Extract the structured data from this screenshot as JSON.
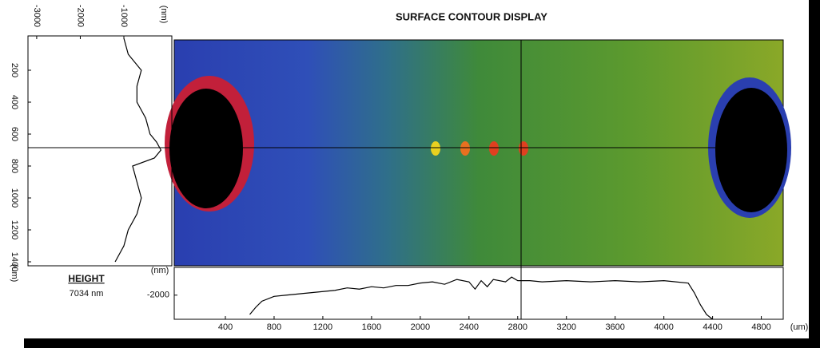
{
  "header": {
    "title": "SURFACE CONTOUR DISPLAY"
  },
  "readout": {
    "label": "HEIGHT",
    "value": "7034 nm"
  },
  "left_profile": {
    "xlim": [
      -3200,
      100
    ],
    "ylim": [
      -15,
      1425
    ],
    "xticks": [
      -3000,
      -2000,
      -1000
    ],
    "x_unit": "(nm)",
    "yticks": [
      200,
      400,
      600,
      800,
      1000,
      1200,
      1400
    ],
    "y_unit": "(um)",
    "x": [
      -1000,
      -900,
      -600,
      -700,
      -700,
      -500,
      -400,
      -250,
      -150,
      -300,
      -800,
      -700,
      -600,
      -700,
      -900,
      -1000,
      -1200
    ],
    "y": [
      0,
      100,
      200,
      300,
      400,
      500,
      600,
      650,
      700,
      750,
      800,
      900,
      1000,
      1100,
      1200,
      1300,
      1400
    ]
  },
  "bottom_profile": {
    "xlim": [
      -20,
      4980
    ],
    "ylim": [
      -4000,
      300
    ],
    "xticks": [
      400,
      800,
      1200,
      1600,
      2000,
      2400,
      2800,
      3200,
      3600,
      4000,
      4400,
      4800
    ],
    "x_unit": "(um)",
    "yticks": [
      -2000
    ],
    "y_unit": "(nm)",
    "x": [
      600,
      650,
      700,
      800,
      900,
      1000,
      1100,
      1200,
      1300,
      1400,
      1500,
      1600,
      1700,
      1800,
      1900,
      2000,
      2100,
      2200,
      2300,
      2400,
      2450,
      2500,
      2550,
      2600,
      2700,
      2750,
      2800,
      2900,
      3000,
      3200,
      3400,
      3600,
      3800,
      4000,
      4200,
      4250,
      4300,
      4350,
      4400
    ],
    "y": [
      -3600,
      -3000,
      -2500,
      -2100,
      -2000,
      -1900,
      -1800,
      -1700,
      -1600,
      -1400,
      -1500,
      -1300,
      -1400,
      -1200,
      -1200,
      -1000,
      -900,
      -1100,
      -700,
      -900,
      -1500,
      -800,
      -1300,
      -700,
      -900,
      -500,
      -800,
      -800,
      -900,
      -800,
      -900,
      -800,
      -900,
      -800,
      -1000,
      -1800,
      -2800,
      -3600,
      -4000
    ]
  }
}
